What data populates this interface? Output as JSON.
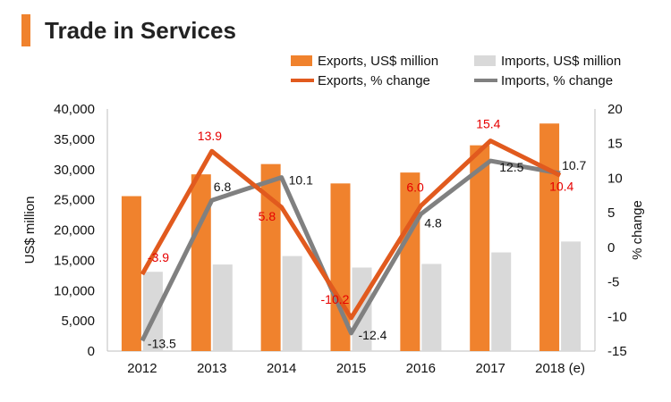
{
  "header": {
    "title": "Trade in Services"
  },
  "colors": {
    "exports": "#f0822d",
    "imports": "#d9d9d9",
    "exports_line": "#e15a1e",
    "imports_line": "#808080",
    "accent": "#f0822d",
    "exports_label": "#e60000",
    "imports_label": "#111111"
  },
  "chart_data": {
    "type": "bar",
    "categories": [
      "2012",
      "2013",
      "2014",
      "2015",
      "2016",
      "2017",
      "2018 (e)"
    ],
    "bar_series": [
      {
        "name": "Exports, US$ million",
        "values": [
          25600,
          29200,
          30900,
          27700,
          29500,
          34000,
          37600
        ]
      },
      {
        "name": "Imports, US$ million",
        "values": [
          13100,
          14300,
          15700,
          13800,
          14400,
          16300,
          18100
        ]
      }
    ],
    "line_series": [
      {
        "name": "Exports, % change",
        "values": [
          -3.9,
          13.9,
          5.8,
          -10.2,
          6.0,
          15.4,
          10.4
        ],
        "labels": [
          "-3.9",
          "13.9",
          "5.8",
          "-10.2",
          "6.0",
          "15.4",
          "10.4"
        ]
      },
      {
        "name": "Imports, % change",
        "values": [
          -13.5,
          6.8,
          10.1,
          -12.4,
          4.8,
          12.5,
          10.7
        ],
        "labels": [
          "-13.5",
          "6.8",
          "10.1",
          "-12.4",
          "4.8",
          "12.5",
          "10.7"
        ]
      }
    ],
    "ylabel": "US$ million",
    "y2label": "% change",
    "ylim": [
      0,
      40000
    ],
    "y2lim": [
      -15,
      20
    ],
    "yticks": [
      "0",
      "5,000",
      "10,000",
      "15,000",
      "20,000",
      "25,000",
      "30,000",
      "35,000",
      "40,000"
    ],
    "y2ticks": [
      "-15",
      "-10",
      "-5",
      "0",
      "5",
      "10",
      "15",
      "20"
    ],
    "legend_position": "top",
    "grid": false
  }
}
